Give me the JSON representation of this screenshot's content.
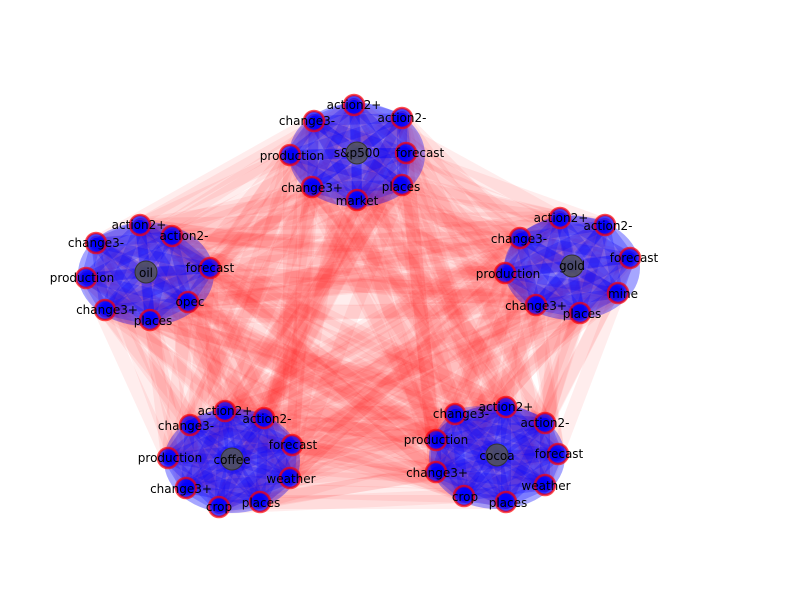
{
  "colors": {
    "inter_edge": "#ff0000",
    "intra_edge": "#0000ff",
    "node_fill": "#0000ff",
    "node_edge": "#ff0000",
    "hub_fill": "#555555",
    "label": "#000000"
  },
  "clusters": [
    {
      "id": "sp500",
      "hub": "s&p500",
      "nodes": [
        "action2+",
        "action2-",
        "change3-",
        "production",
        "forecast",
        "change3+",
        "places",
        "market"
      ]
    },
    {
      "id": "oil",
      "hub": "oil",
      "nodes": [
        "action2+",
        "change3-",
        "action2-",
        "production",
        "forecast",
        "change3+",
        "opec",
        "places"
      ]
    },
    {
      "id": "gold",
      "hub": "gold",
      "nodes": [
        "action2+",
        "action2-",
        "change3-",
        "production",
        "forecast",
        "change3+",
        "mine",
        "places"
      ]
    },
    {
      "id": "coffee",
      "hub": "coffee",
      "nodes": [
        "action2+",
        "change3-",
        "action2-",
        "production",
        "forecast",
        "change3+",
        "weather",
        "places",
        "crop"
      ]
    },
    {
      "id": "cocoa",
      "hub": "cocoa",
      "nodes": [
        "change3-",
        "action2+",
        "action2-",
        "production",
        "forecast",
        "change3+",
        "weather",
        "crop",
        "places"
      ]
    }
  ]
}
